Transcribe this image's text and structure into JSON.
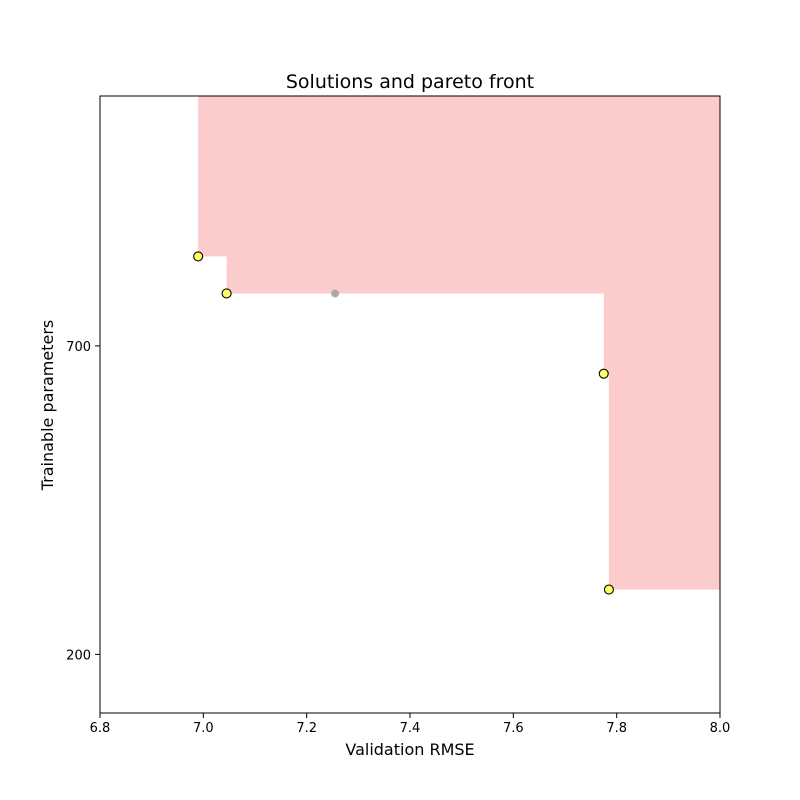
{
  "chart_data": {
    "type": "scatter",
    "title": "Solutions and pareto front",
    "xlabel": "Validation RMSE",
    "ylabel": "Trainable parameters",
    "xlim": [
      6.8,
      8.0
    ],
    "ylim": [
      105,
      1105
    ],
    "x_ticks": [
      6.8,
      7.0,
      7.2,
      7.4,
      7.6,
      7.8,
      8.0
    ],
    "x_tick_labels": [
      "6.8",
      "7.0",
      "7.2",
      "7.4",
      "7.6",
      "7.8",
      "8.0"
    ],
    "y_ticks": [
      200,
      700
    ],
    "y_tick_labels": [
      "200",
      "700"
    ],
    "grid": false,
    "dominated_region_color": "#fccccc",
    "pareto_points": [
      {
        "x": 6.99,
        "y": 845
      },
      {
        "x": 7.045,
        "y": 785
      },
      {
        "x": 7.775,
        "y": 655
      },
      {
        "x": 7.785,
        "y": 305
      }
    ],
    "dominated_points": [
      {
        "x": 7.255,
        "y": 785
      }
    ],
    "colors": {
      "pareto_fill": "#ffff66",
      "pareto_edge": "#000000",
      "dominated": "#aaaaaa"
    }
  }
}
